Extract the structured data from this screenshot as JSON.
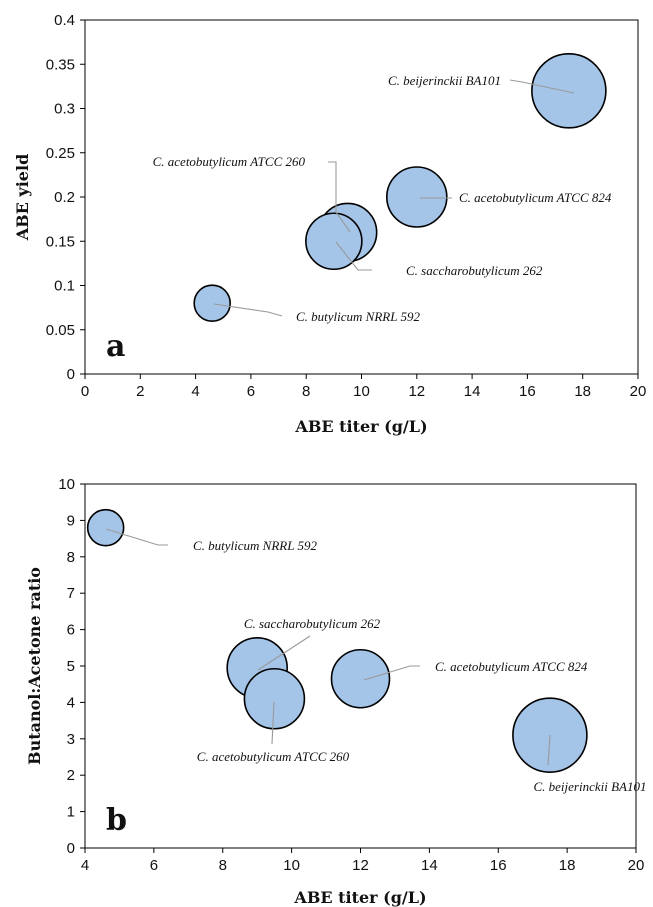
{
  "chart_data": [
    {
      "type": "scatter",
      "panel_label": "a",
      "xlabel": "ABE titer (g/L)",
      "ylabel": "ABE yield",
      "xlim": [
        0,
        20
      ],
      "ylim": [
        0,
        0.4
      ],
      "xticks": [
        0,
        2,
        4,
        6,
        8,
        10,
        12,
        14,
        16,
        18,
        20
      ],
      "yticks": [
        0,
        0.05,
        0.1,
        0.15,
        0.2,
        0.25,
        0.3,
        0.35,
        0.4
      ],
      "ytick_labels": [
        "0",
        "0.05",
        "0.1",
        "0.15",
        "0.2",
        "0.25",
        "0.3",
        "0.35",
        "0.4"
      ],
      "grid": false,
      "points": [
        {
          "label": "C. butylicum NRRL 592",
          "x": 4.6,
          "y": 0.08
        },
        {
          "label": "C. acetobutylicum ATCC 260",
          "x": 9.5,
          "y": 0.16
        },
        {
          "label": "C. saccharobutylicum 262",
          "x": 9.0,
          "y": 0.15
        },
        {
          "label": "C. acetobutylicum ATCC 824",
          "x": 12.0,
          "y": 0.2
        },
        {
          "label": "C. beijerinckii BA101",
          "x": 17.5,
          "y": 0.32
        }
      ]
    },
    {
      "type": "scatter",
      "panel_label": "b",
      "xlabel": "ABE titer (g/L)",
      "ylabel": "Butanol:Acetone  ratio",
      "xlim": [
        4,
        20
      ],
      "ylim": [
        0,
        10
      ],
      "xticks": [
        4,
        6,
        8,
        10,
        12,
        14,
        16,
        18,
        20
      ],
      "yticks": [
        0,
        1,
        2,
        3,
        4,
        5,
        6,
        7,
        8,
        9,
        10
      ],
      "ytick_labels": [
        "0",
        "1",
        "2",
        "3",
        "4",
        "5",
        "6",
        "7",
        "8",
        "9",
        "10"
      ],
      "grid": false,
      "points": [
        {
          "label": "C. butylicum NRRL 592",
          "x": 4.6,
          "y": 8.8
        },
        {
          "label": "C. saccharobutylicum 262",
          "x": 9.0,
          "y": 4.95
        },
        {
          "label": "C. acetobutylicum ATCC 260",
          "x": 9.5,
          "y": 4.1
        },
        {
          "label": "C. acetobutylicum ATCC 824",
          "x": 12.0,
          "y": 4.65
        },
        {
          "label": "C. beijerinckii BA101",
          "x": 17.5,
          "y": 3.1
        }
      ]
    }
  ]
}
